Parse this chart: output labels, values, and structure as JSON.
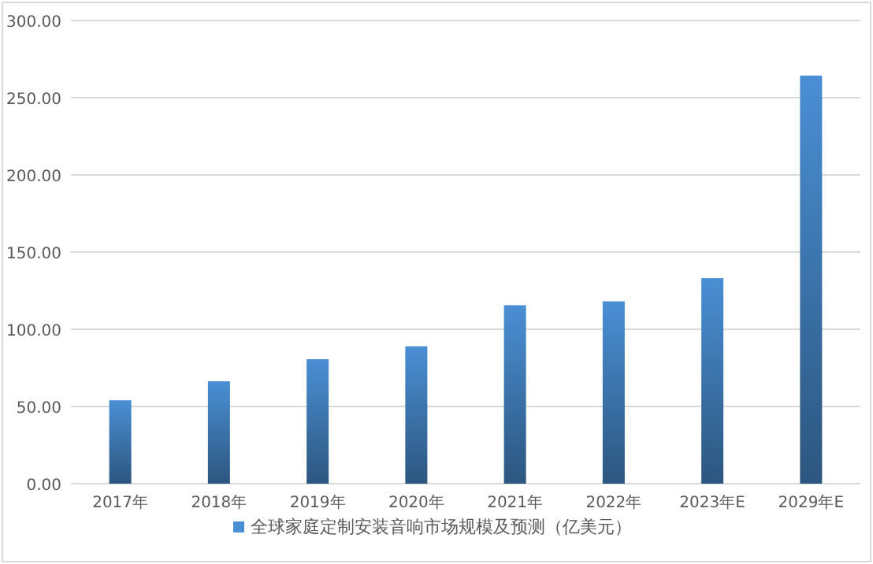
{
  "chart_data": {
    "type": "bar",
    "categories": [
      "2017年",
      "2018年",
      "2019年",
      "2020年",
      "2021年",
      "2022年",
      "2023年E",
      "2029年E"
    ],
    "series": [
      {
        "name": "全球家庭定制安装音响市场规模及预测（亿美元）",
        "color": "#4a8fd4",
        "values": [
          54.0,
          66.3,
          80.6,
          89.0,
          115.6,
          118.1,
          133.1,
          264.3
        ]
      }
    ],
    "ylim": [
      0,
      300
    ],
    "yticks": [
      {
        "value": 0,
        "label": "0.00"
      },
      {
        "value": 50,
        "label": "50.00"
      },
      {
        "value": 100,
        "label": "100.00"
      },
      {
        "value": 150,
        "label": "150.00"
      },
      {
        "value": 200,
        "label": "200.00"
      },
      {
        "value": 250,
        "label": "250.00"
      },
      {
        "value": 300,
        "label": "300.00"
      }
    ],
    "grid": "y",
    "legend": "bottom"
  }
}
